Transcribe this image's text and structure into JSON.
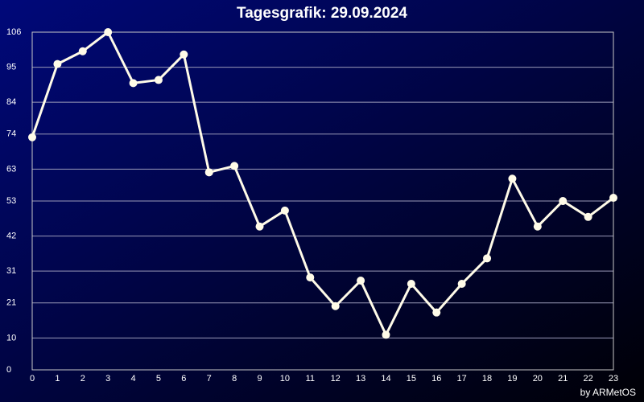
{
  "chart_data": {
    "type": "line",
    "title": "Tagesgrafik: 29.09.2024",
    "credit": "by ARMetOS",
    "x": [
      0,
      1,
      2,
      3,
      4,
      5,
      6,
      7,
      8,
      9,
      10,
      11,
      12,
      13,
      14,
      15,
      16,
      17,
      18,
      19,
      20,
      21,
      22,
      23
    ],
    "series": [
      {
        "color": "#fffbe8",
        "values": [
          73,
          96,
          100,
          106,
          90,
          91,
          99,
          62,
          64,
          45,
          50,
          29,
          20,
          28,
          11,
          27,
          18,
          27,
          35,
          60,
          45,
          53,
          48,
          54
        ]
      }
    ],
    "xlim": [
      0,
      23
    ],
    "ylim": [
      0,
      106
    ],
    "yticks": [
      0,
      10,
      21,
      31,
      42,
      53,
      63,
      74,
      84,
      95,
      106
    ],
    "grid": true
  }
}
